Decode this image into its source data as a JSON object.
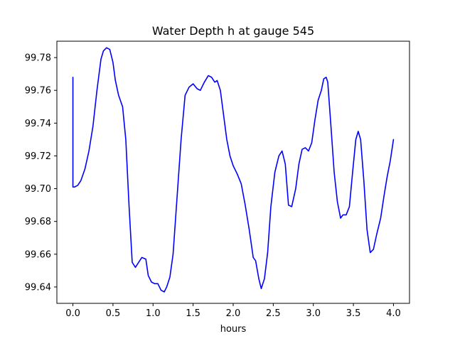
{
  "chart_data": {
    "type": "line",
    "title": "Water Depth h at gauge 545",
    "xlabel": "hours",
    "ylabel": "",
    "xlim": [
      -0.2,
      4.2
    ],
    "ylim": [
      99.63,
      99.79
    ],
    "xticks": [
      0.0,
      0.5,
      1.0,
      1.5,
      2.0,
      2.5,
      3.0,
      3.5,
      4.0
    ],
    "xtick_labels": [
      "0.0",
      "0.5",
      "1.0",
      "1.5",
      "2.0",
      "2.5",
      "3.0",
      "3.5",
      "4.0"
    ],
    "yticks": [
      99.64,
      99.66,
      99.68,
      99.7,
      99.72,
      99.74,
      99.76,
      99.78
    ],
    "ytick_labels": [
      "99.64",
      "99.66",
      "99.68",
      "99.70",
      "99.72",
      "99.74",
      "99.76",
      "99.78"
    ],
    "grid": false,
    "series": [
      {
        "color": "#0000ff",
        "x": [
          0.0,
          0.0,
          0.02,
          0.06,
          0.1,
          0.15,
          0.2,
          0.25,
          0.3,
          0.35,
          0.38,
          0.42,
          0.46,
          0.5,
          0.53,
          0.57,
          0.62,
          0.66,
          0.7,
          0.74,
          0.78,
          0.82,
          0.86,
          0.91,
          0.94,
          0.98,
          1.02,
          1.06,
          1.1,
          1.14,
          1.17,
          1.21,
          1.25,
          1.3,
          1.35,
          1.4,
          1.45,
          1.5,
          1.55,
          1.59,
          1.64,
          1.69,
          1.73,
          1.77,
          1.8,
          1.84,
          1.88,
          1.92,
          1.96,
          2.0,
          2.05,
          2.1,
          2.15,
          2.2,
          2.25,
          2.28,
          2.32,
          2.35,
          2.39,
          2.43,
          2.47,
          2.52,
          2.57,
          2.61,
          2.65,
          2.69,
          2.73,
          2.78,
          2.82,
          2.86,
          2.9,
          2.94,
          2.98,
          3.02,
          3.06,
          3.1,
          3.13,
          3.16,
          3.18,
          3.22,
          3.26,
          3.3,
          3.34,
          3.37,
          3.41,
          3.45,
          3.49,
          3.53,
          3.56,
          3.59,
          3.63,
          3.67,
          3.71,
          3.75,
          3.79,
          3.84,
          3.88,
          3.92,
          3.96,
          4.0
        ],
        "values": [
          99.768,
          99.701,
          99.701,
          99.702,
          99.705,
          99.712,
          99.723,
          99.738,
          99.76,
          99.779,
          99.784,
          99.786,
          99.785,
          99.777,
          99.766,
          99.757,
          99.75,
          99.73,
          99.69,
          99.655,
          99.652,
          99.655,
          99.658,
          99.657,
          99.647,
          99.643,
          99.642,
          99.642,
          99.638,
          99.637,
          99.64,
          99.646,
          99.66,
          99.695,
          99.73,
          99.757,
          99.762,
          99.764,
          99.761,
          99.76,
          99.765,
          99.769,
          99.768,
          99.765,
          99.766,
          99.76,
          99.745,
          99.73,
          99.72,
          99.714,
          99.709,
          99.703,
          99.69,
          99.675,
          99.658,
          99.656,
          99.645,
          99.639,
          99.645,
          99.661,
          99.689,
          99.71,
          99.72,
          99.723,
          99.715,
          99.69,
          99.689,
          99.7,
          99.715,
          99.724,
          99.725,
          99.723,
          99.728,
          99.742,
          99.754,
          99.76,
          99.767,
          99.768,
          99.765,
          99.738,
          99.71,
          99.692,
          99.682,
          99.684,
          99.684,
          99.689,
          99.71,
          99.73,
          99.735,
          99.73,
          99.705,
          99.675,
          99.661,
          99.663,
          99.672,
          99.682,
          99.695,
          99.707,
          99.717,
          99.73
        ]
      }
    ]
  }
}
